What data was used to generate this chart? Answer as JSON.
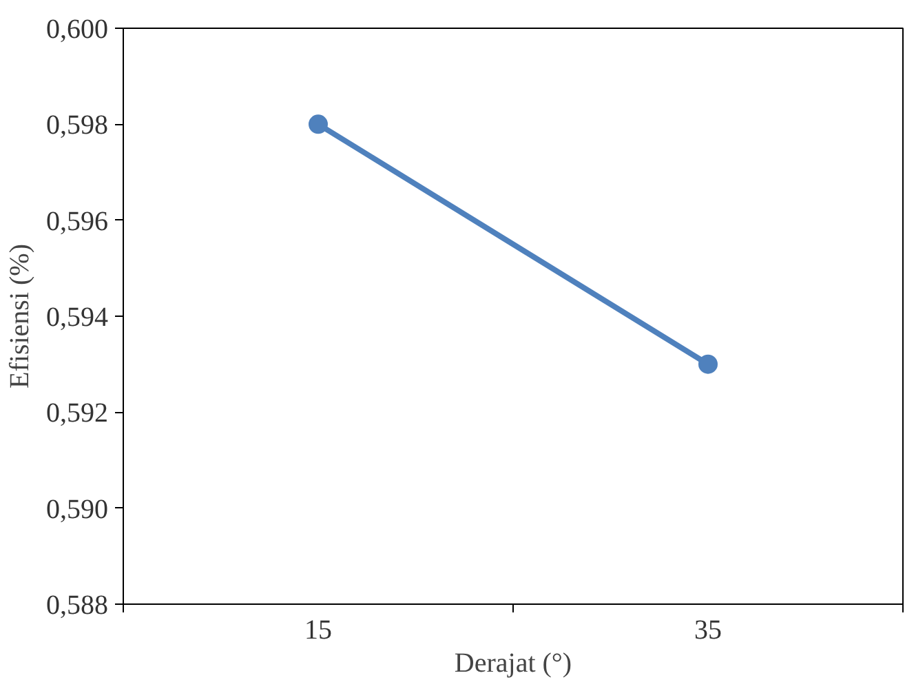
{
  "chart_data": {
    "type": "line",
    "xlabel": "Derajat (°)",
    "ylabel": "Efisiensi (%)",
    "categories": [
      "15",
      "35"
    ],
    "series": [
      {
        "color": "#4f81bd",
        "values": [
          0.598,
          0.593
        ]
      }
    ],
    "ylim": [
      0.588,
      0.6
    ],
    "yticks": [
      {
        "value": 0.588,
        "label": "0,588"
      },
      {
        "value": 0.59,
        "label": "0,590"
      },
      {
        "value": 0.592,
        "label": "0,592"
      },
      {
        "value": 0.594,
        "label": "0,594"
      },
      {
        "value": 0.596,
        "label": "0,596"
      },
      {
        "value": 0.598,
        "label": "0,598"
      },
      {
        "value": 0.6,
        "label": "0,600"
      }
    ],
    "grid": false,
    "marker": "circle",
    "line_style": "solid"
  }
}
